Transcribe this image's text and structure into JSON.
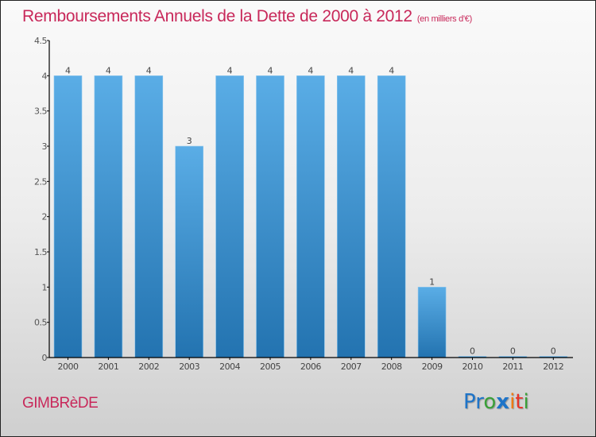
{
  "title": "Remboursements Annuels de la Dette de 2000 à 2012",
  "subtitle": "(en milliers d'€)",
  "commune": "GIMBRèDE",
  "logo": {
    "letters": [
      {
        "char": "P",
        "color": "#1e74c8"
      },
      {
        "char": "r",
        "color": "#1e74c8"
      },
      {
        "char": "o",
        "color": "#3aa038"
      },
      {
        "char": "x",
        "color": "#1e74c8"
      },
      {
        "char": "i",
        "color": "#f07a10"
      },
      {
        "char": "t",
        "color": "#e8352a"
      },
      {
        "char": "i",
        "color": "#3aa038"
      }
    ]
  },
  "colors": {
    "title": "#c8285a",
    "bar_top": "#5aade6",
    "bar_bottom": "#2373b0",
    "axis": "#000000",
    "label": "#444444"
  },
  "chart_data": {
    "type": "bar",
    "title": "Remboursements Annuels de la Dette de 2000 à 2012",
    "subtitle": "(en milliers d'€)",
    "xlabel": "",
    "ylabel": "",
    "categories": [
      "2000",
      "2001",
      "2002",
      "2003",
      "2004",
      "2005",
      "2006",
      "2007",
      "2008",
      "2009",
      "2010",
      "2011",
      "2012"
    ],
    "values": [
      4,
      4,
      4,
      3,
      4,
      4,
      4,
      4,
      4,
      1,
      0,
      0,
      0
    ],
    "ylim": [
      0,
      4.5
    ],
    "yticks": [
      0,
      0.5,
      1,
      1.5,
      2,
      2.5,
      3,
      3.5,
      4,
      4.5
    ],
    "ytick_labels": [
      "0",
      "0.5",
      "1",
      "1.5",
      "2",
      "2.5",
      "3",
      "3.5",
      "4",
      "4.5"
    ],
    "grid": false,
    "legend": "none"
  }
}
